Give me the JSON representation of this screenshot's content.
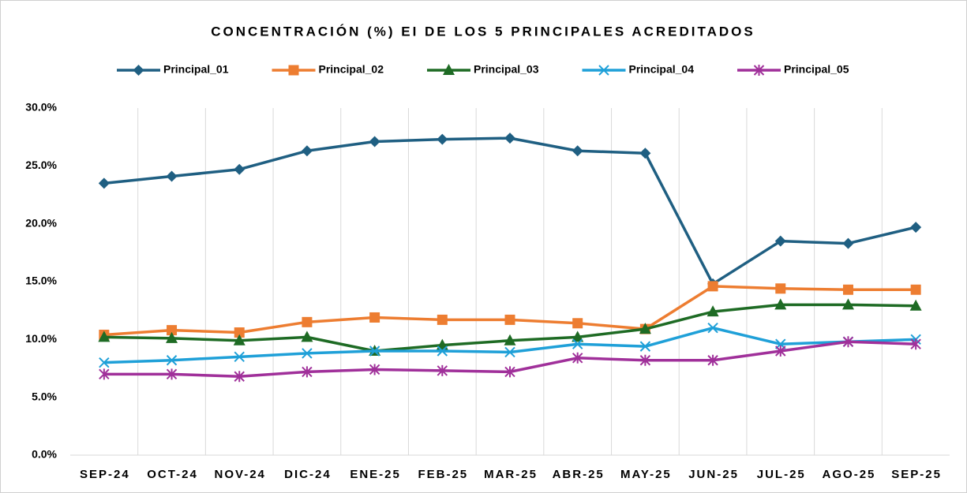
{
  "chart_data": {
    "type": "line",
    "title": "CONCENTRACIÓN (%) EI DE LOS 5 PRINCIPALES ACREDITADOS",
    "categories": [
      "SEP-24",
      "OCT-24",
      "NOV-24",
      "DIC-24",
      "ENE-25",
      "FEB-25",
      "MAR-25",
      "ABR-25",
      "MAY-25",
      "JUN-25",
      "JUL-25",
      "AGO-25",
      "SEP-25"
    ],
    "series": [
      {
        "name": "Principal_01",
        "color": "#1f5f82",
        "marker": "diamond",
        "values": [
          23.5,
          24.1,
          24.7,
          26.3,
          27.1,
          27.3,
          27.4,
          26.3,
          26.1,
          14.8,
          18.5,
          18.3,
          19.7
        ]
      },
      {
        "name": "Principal_02",
        "color": "#ed7d31",
        "marker": "square",
        "values": [
          10.4,
          10.8,
          10.6,
          11.5,
          11.9,
          11.7,
          11.7,
          11.4,
          10.9,
          14.6,
          14.4,
          14.3,
          14.3
        ]
      },
      {
        "name": "Principal_03",
        "color": "#1e6b24",
        "marker": "triangle",
        "values": [
          10.2,
          10.1,
          9.9,
          10.2,
          9.0,
          9.5,
          9.9,
          10.2,
          10.9,
          12.4,
          13.0,
          13.0,
          12.9
        ]
      },
      {
        "name": "Principal_04",
        "color": "#1fa0d8",
        "marker": "x",
        "values": [
          8.0,
          8.2,
          8.5,
          8.8,
          9.0,
          9.0,
          8.9,
          9.6,
          9.4,
          11.0,
          9.6,
          9.8,
          10.0
        ]
      },
      {
        "name": "Principal_05",
        "color": "#a0309a",
        "marker": "star",
        "values": [
          7.0,
          7.0,
          6.8,
          7.2,
          7.4,
          7.3,
          7.2,
          8.4,
          8.2,
          8.2,
          9.0,
          9.8,
          9.6
        ]
      }
    ],
    "ylim": [
      0,
      30
    ],
    "yticks": [
      {
        "value": 0,
        "label": "0.0%"
      },
      {
        "value": 5,
        "label": "5.0%"
      },
      {
        "value": 10,
        "label": "10.0%"
      },
      {
        "value": 15,
        "label": "15.0%"
      },
      {
        "value": 20,
        "label": "20.0%"
      },
      {
        "value": 25,
        "label": "25.0%"
      },
      {
        "value": 30,
        "label": "30.0%"
      }
    ],
    "grid": "vertical",
    "legend": "top"
  }
}
